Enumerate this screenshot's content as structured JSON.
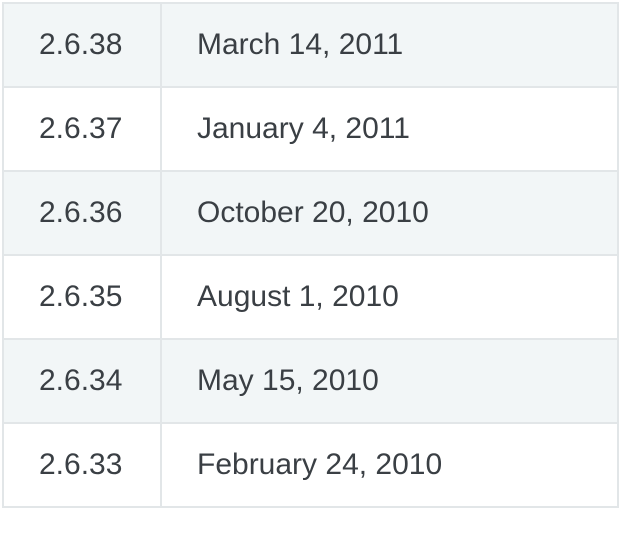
{
  "table": {
    "rows": [
      {
        "version": "2.6.38",
        "date": "March 14, 2011"
      },
      {
        "version": "2.6.37",
        "date": "January 4, 2011"
      },
      {
        "version": "2.6.36",
        "date": "October 20, 2010"
      },
      {
        "version": "2.6.35",
        "date": "August 1, 2010"
      },
      {
        "version": "2.6.34",
        "date": "May 15, 2010"
      },
      {
        "version": "2.6.33",
        "date": "February 24, 2010"
      }
    ]
  },
  "colors": {
    "text": "#3a3f44",
    "border": "#e2e6e8",
    "row_shaded": "#f2f6f7",
    "row_plain": "#ffffff"
  }
}
